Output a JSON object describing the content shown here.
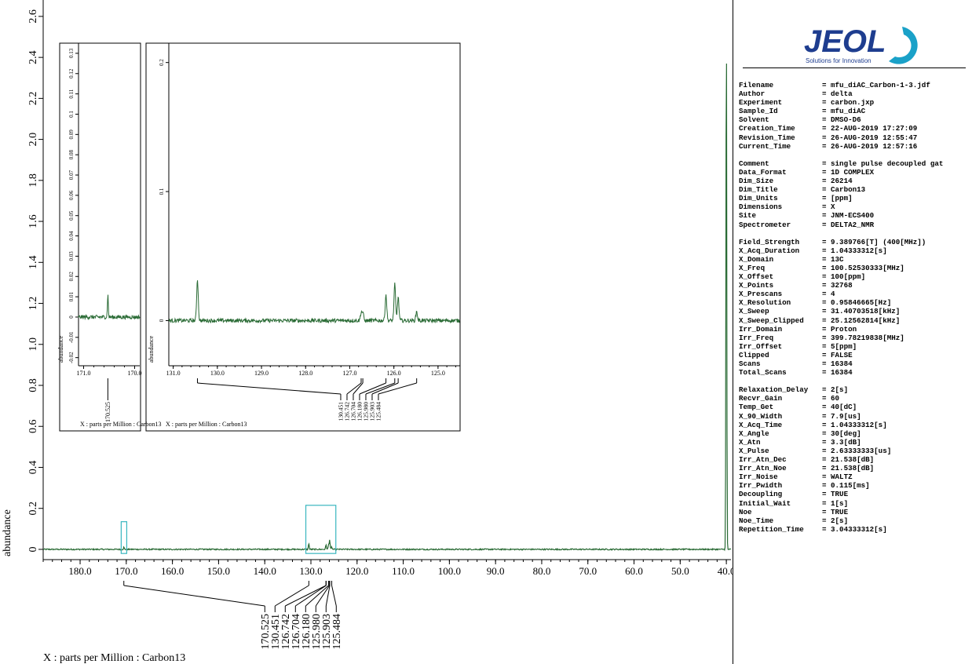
{
  "brand": {
    "name": "JEOL",
    "tagline": "Solutions for Innovation",
    "color": "#1e3d8f",
    "accent": "#1aa1c8"
  },
  "colors": {
    "trace": "#2a6b35",
    "zoom_box": "#39b6bf",
    "axis": "#000000"
  },
  "chart_data": [
    {
      "type": "line",
      "role": "main-spectrum",
      "xlabel": "X : parts per Million : Carbon13",
      "ylabel": "abundance",
      "x_axis_reversed": true,
      "xlim": [
        188.0,
        39.0
      ],
      "ylim": [
        -0.05,
        2.68
      ],
      "x_ticks": [
        "180.0",
        "170.0",
        "160.0",
        "150.0",
        "140.0",
        "130.0",
        "120.0",
        "110.0",
        "100.0",
        "90.0",
        "80.0",
        "70.0",
        "60.0",
        "50.0",
        "40.0"
      ],
      "x_tick_values": [
        180,
        170,
        160,
        150,
        140,
        130,
        120,
        110,
        100,
        90,
        80,
        70,
        60,
        50,
        40
      ],
      "y_ticks": [
        "0",
        "0.2",
        "0.4",
        "0.6",
        "0.8",
        "1.0",
        "1.2",
        "1.4",
        "1.6",
        "1.8",
        "2.0",
        "2.2",
        "2.4",
        "2.6"
      ],
      "y_tick_values": [
        0,
        0.2,
        0.4,
        0.6,
        0.8,
        1.0,
        1.2,
        1.4,
        1.6,
        1.8,
        2.0,
        2.2,
        2.4,
        2.6
      ],
      "peaks": [
        {
          "x": 170.525,
          "y": 0.01
        },
        {
          "x": 130.451,
          "y": 0.03
        },
        {
          "x": 126.742,
          "y": 0.012
        },
        {
          "x": 126.704,
          "y": 0.012
        },
        {
          "x": 126.18,
          "y": 0.022
        },
        {
          "x": 125.98,
          "y": 0.028
        },
        {
          "x": 125.903,
          "y": 0.024
        },
        {
          "x": 125.484,
          "y": 0.012
        },
        {
          "x": 40.0,
          "y": 2.68
        }
      ],
      "peak_labels": [
        "170.525",
        "130.451",
        "126.742",
        "126.704",
        "126.180",
        "125.980",
        "125.903",
        "125.484"
      ],
      "zoom_regions": [
        {
          "x_from": 171.1,
          "x_to": 169.9,
          "y_from": -0.02,
          "y_to": 0.135
        },
        {
          "x_from": 131.1,
          "x_to": 124.6,
          "y_from": -0.02,
          "y_to": 0.215
        }
      ]
    },
    {
      "type": "line",
      "role": "inset-left",
      "xlabel": "X : parts per Million : Carbon13",
      "ylabel": "abundance",
      "x_axis_reversed": true,
      "xlim": [
        171.1,
        169.9
      ],
      "ylim": [
        -0.024,
        0.135
      ],
      "x_ticks": [
        "171.0",
        "170.0"
      ],
      "x_tick_values": [
        171.0,
        170.0
      ],
      "y_ticks": [
        "-0.02",
        "-0.01",
        "0",
        "0.01",
        "0.02",
        "0.03",
        "0.04",
        "0.05",
        "0.06",
        "0.07",
        "0.08",
        "0.09",
        "0.1",
        "0.11",
        "0.12",
        "0.13"
      ],
      "y_tick_values": [
        -0.02,
        -0.01,
        0,
        0.01,
        0.02,
        0.03,
        0.04,
        0.05,
        0.06,
        0.07,
        0.08,
        0.09,
        0.1,
        0.11,
        0.12,
        0.13
      ],
      "peaks": [
        {
          "x": 170.525,
          "y": 0.011
        }
      ],
      "peak_labels": [
        "170.525"
      ]
    },
    {
      "type": "line",
      "role": "inset-right",
      "xlabel": "X : parts per Million : Carbon13",
      "ylabel": "abundance",
      "x_axis_reversed": true,
      "xlim": [
        131.1,
        124.5
      ],
      "ylim": [
        -0.035,
        0.215
      ],
      "x_ticks": [
        "131.0",
        "130.0",
        "129.0",
        "128.0",
        "127.0",
        "126.0",
        "125.0"
      ],
      "x_tick_values": [
        131,
        130,
        129,
        128,
        127,
        126,
        125
      ],
      "y_ticks": [
        "0",
        "0.1",
        "0.2"
      ],
      "y_tick_values": [
        0,
        0.1,
        0.2
      ],
      "peaks": [
        {
          "x": 130.451,
          "y": 0.032
        },
        {
          "x": 126.742,
          "y": 0.006
        },
        {
          "x": 126.704,
          "y": 0.006
        },
        {
          "x": 126.18,
          "y": 0.02
        },
        {
          "x": 125.98,
          "y": 0.028
        },
        {
          "x": 125.903,
          "y": 0.018
        },
        {
          "x": 125.484,
          "y": 0.007
        }
      ],
      "peak_labels": [
        "130.451",
        "126.742",
        "126.704",
        "126.180",
        "125.980",
        "125.903",
        "125.484"
      ]
    }
  ],
  "metadata": [
    [
      "Filename",
      "= mfu_diAC_Carbon-1-3.jdf"
    ],
    [
      "Author",
      "= delta"
    ],
    [
      "Experiment",
      "= carbon.jxp"
    ],
    [
      "Sample_Id",
      "= mfu_diAC"
    ],
    [
      "Solvent",
      "= DMSO-D6"
    ],
    [
      "Creation_Time",
      "= 22-AUG-2019 17:27:09"
    ],
    [
      "Revision_Time",
      "= 26-AUG-2019 12:55:47"
    ],
    [
      "Current_Time",
      "= 26-AUG-2019 12:57:16"
    ],
    [
      "",
      ""
    ],
    [
      "Comment",
      "= single pulse decoupled gat"
    ],
    [
      "Data_Format",
      "= 1D COMPLEX"
    ],
    [
      "Dim_Size",
      "= 26214"
    ],
    [
      "Dim_Title",
      "= Carbon13"
    ],
    [
      "Dim_Units",
      "= [ppm]"
    ],
    [
      "Dimensions",
      "= X"
    ],
    [
      "Site",
      "= JNM-ECS400"
    ],
    [
      "Spectrometer",
      "= DELTA2_NMR"
    ],
    [
      "",
      ""
    ],
    [
      "Field_Strength",
      "= 9.389766[T] (400[MHz])"
    ],
    [
      "X_Acq_Duration",
      "= 1.04333312[s]"
    ],
    [
      "X_Domain",
      "= 13C"
    ],
    [
      "X_Freq",
      "= 100.52530333[MHz]"
    ],
    [
      "X_Offset",
      "= 100[ppm]"
    ],
    [
      "X_Points",
      "= 32768"
    ],
    [
      "X_Prescans",
      "= 4"
    ],
    [
      "X_Resolution",
      "= 0.95846665[Hz]"
    ],
    [
      "X_Sweep",
      "= 31.40703518[kHz]"
    ],
    [
      "X_Sweep_Clipped",
      "= 25.12562814[kHz]"
    ],
    [
      "Irr_Domain",
      "= Proton"
    ],
    [
      "Irr_Freq",
      "= 399.78219838[MHz]"
    ],
    [
      "Irr_Offset",
      "= 5[ppm]"
    ],
    [
      "Clipped",
      "= FALSE"
    ],
    [
      "Scans",
      "= 16384"
    ],
    [
      "Total_Scans",
      "= 16384"
    ],
    [
      "",
      ""
    ],
    [
      "Relaxation_Delay",
      "= 2[s]"
    ],
    [
      "Recvr_Gain",
      "= 60"
    ],
    [
      "Temp_Get",
      "= 40[dC]"
    ],
    [
      "X_90_Width",
      "= 7.9[us]"
    ],
    [
      "X_Acq_Time",
      "= 1.04333312[s]"
    ],
    [
      "X_Angle",
      "= 30[deg]"
    ],
    [
      "X_Atn",
      "= 3.3[dB]"
    ],
    [
      "X_Pulse",
      "= 2.63333333[us]"
    ],
    [
      "Irr_Atn_Dec",
      "= 21.538[dB]"
    ],
    [
      "Irr_Atn_Noe",
      "= 21.538[dB]"
    ],
    [
      "Irr_Noise",
      "= WALTZ"
    ],
    [
      "Irr_Pwidth",
      "= 0.115[ms]"
    ],
    [
      "Decoupling",
      "= TRUE"
    ],
    [
      "Initial_Wait",
      "= 1[s]"
    ],
    [
      "Noe",
      "= TRUE"
    ],
    [
      "Noe_Time",
      "= 2[s]"
    ],
    [
      "Repetition_Time",
      "= 3.04333312[s]"
    ]
  ]
}
